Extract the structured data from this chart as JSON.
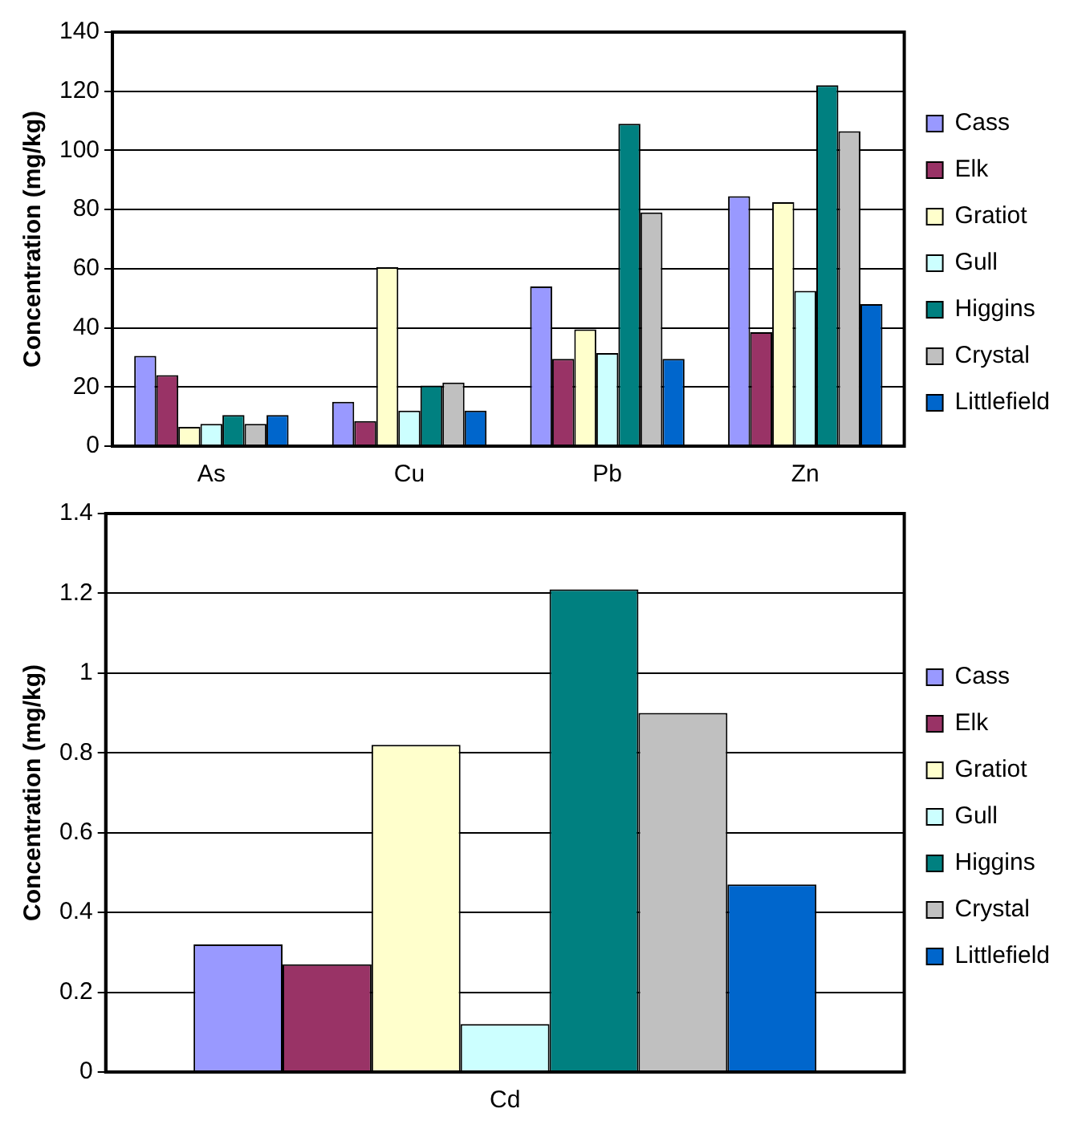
{
  "chart_data": [
    {
      "type": "bar",
      "ylabel": "Concentration (mg/kg)",
      "categories": [
        "As",
        "Cu",
        "Pb",
        "Zn"
      ],
      "ylim": [
        0,
        140
      ],
      "yticks": [
        0,
        20,
        40,
        60,
        80,
        100,
        120,
        140
      ],
      "grid": "y",
      "legend": "right",
      "series": [
        {
          "name": "Cass",
          "color": "#9999ff",
          "values": [
            30.5,
            15,
            54,
            84.5
          ]
        },
        {
          "name": "Elk",
          "color": "#993366",
          "values": [
            24,
            8.5,
            29.5,
            38.5
          ]
        },
        {
          "name": "Gratiot",
          "color": "#ffffcc",
          "values": [
            6.5,
            60.5,
            39.5,
            82.5
          ]
        },
        {
          "name": "Gull",
          "color": "#ccffff",
          "values": [
            7.5,
            12,
            31.5,
            52.5
          ]
        },
        {
          "name": "Higgins",
          "color": "#008080",
          "values": [
            10.5,
            20.5,
            109,
            122
          ]
        },
        {
          "name": "Crystal",
          "color": "#c0c0c0",
          "values": [
            7.5,
            21.5,
            79,
            106.5
          ]
        },
        {
          "name": "Littlefield",
          "color": "#0066cc",
          "values": [
            10.5,
            12,
            29.5,
            48
          ]
        }
      ]
    },
    {
      "type": "bar",
      "ylabel": "Concentration (mg/kg)",
      "categories": [
        "Cd"
      ],
      "ylim": [
        0,
        1.4
      ],
      "yticks": [
        0,
        0.2,
        0.4,
        0.6,
        0.8,
        1,
        1.2,
        1.4
      ],
      "grid": "y",
      "legend": "right",
      "series": [
        {
          "name": "Cass",
          "color": "#9999ff",
          "values": [
            0.32
          ]
        },
        {
          "name": "Elk",
          "color": "#993366",
          "values": [
            0.27
          ]
        },
        {
          "name": "Gratiot",
          "color": "#ffffcc",
          "values": [
            0.82
          ]
        },
        {
          "name": "Gull",
          "color": "#ccffff",
          "values": [
            0.12
          ]
        },
        {
          "name": "Higgins",
          "color": "#008080",
          "values": [
            1.21
          ]
        },
        {
          "name": "Crystal",
          "color": "#c0c0c0",
          "values": [
            0.9
          ]
        },
        {
          "name": "Littlefield",
          "color": "#0066cc",
          "values": [
            0.47
          ]
        }
      ]
    }
  ]
}
